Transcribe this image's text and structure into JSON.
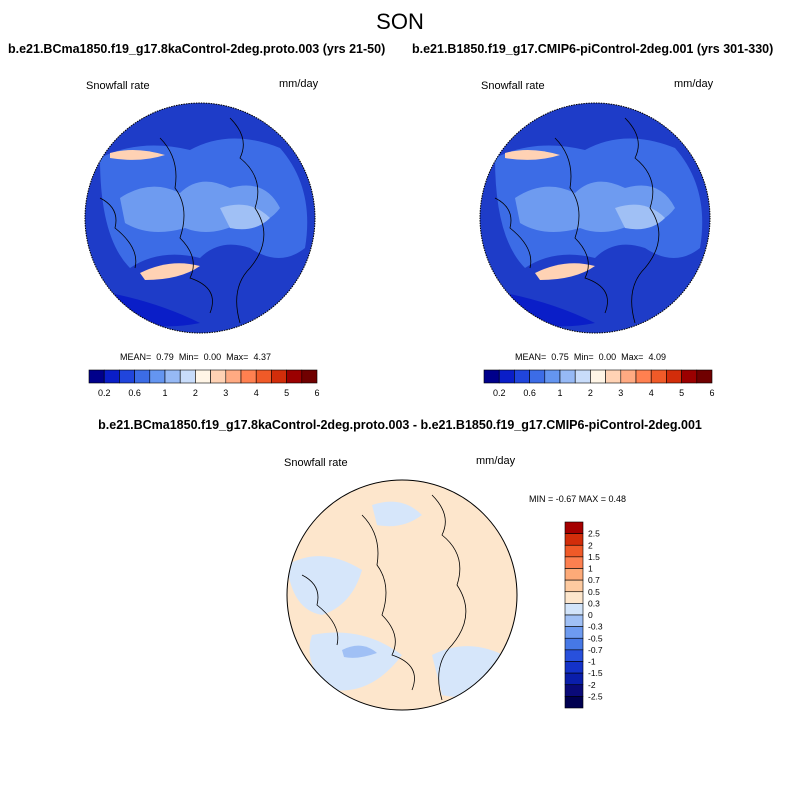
{
  "figure": {
    "season": "SON",
    "var_label": "Snowfall rate",
    "units": "mm/day"
  },
  "panels": [
    {
      "title": "b.e21.BCma1850.f19_g17.8kaControl-2deg.proto.003 (yrs 21-50)",
      "stats": {
        "mean_label": "MEAN=",
        "mean": "0.79",
        "min_label": "Min=",
        "min": "0.00",
        "max_label": "Max=",
        "max": "4.37"
      }
    },
    {
      "title": "b.e21.B1850.f19_g17.CMIP6-piControl-2deg.001 (yrs 301-330)",
      "stats": {
        "mean_label": "MEAN=",
        "mean": "0.75",
        "min_label": "Min=",
        "min": "0.00",
        "max_label": "Max=",
        "max": "4.09"
      }
    }
  ],
  "diff_panel": {
    "title": "b.e21.BCma1850.f19_g17.8kaControl-2deg.proto.003 - b.e21.B1850.f19_g17.CMIP6-piControl-2deg.001",
    "stats": "MIN =  -0.67 MAX =  0.48"
  },
  "colorbar_h": {
    "colors": [
      "#00008b",
      "#0a1ec8",
      "#2045dc",
      "#3c6ce6",
      "#6495f0",
      "#96b9f5",
      "#c8dcfa",
      "#fff5e6",
      "#ffd2b4",
      "#ffaa82",
      "#ff8050",
      "#f05a28",
      "#d22d0a",
      "#9b0000",
      "#700000"
    ],
    "tick_labels": [
      "0.2",
      "0.6",
      "1",
      "2",
      "3",
      "4",
      "5",
      "6"
    ]
  },
  "colorbar_v": {
    "colors": [
      "#0a0a78",
      "#0a1eaa",
      "#1432c8",
      "#2850dc",
      "#4678e6",
      "#6e9bf0",
      "#a0c0f5",
      "#d2e4fa",
      "#fde6cc",
      "#fdcaa0",
      "#fdaa78",
      "#fd8050",
      "#f05a28",
      "#d22d0a",
      "#a50000"
    ],
    "tick_labels": [
      "-2.5",
      "-2",
      "-1.5",
      "-1",
      "-0.7",
      "-0.5",
      "-0.3",
      "0",
      "0.3",
      "0.5",
      "0.7",
      "1",
      "1.5",
      "2",
      "2.5"
    ]
  },
  "map_colors": {
    "ocean_deep": "#1e3cc8",
    "mid": "#3c6ce6",
    "light": "#6e9bf0",
    "pale": "#a0c0f5",
    "warm": "#ffd2b4",
    "diff_pos": "#fde6cc",
    "diff_neg": "#d6e6fa"
  }
}
